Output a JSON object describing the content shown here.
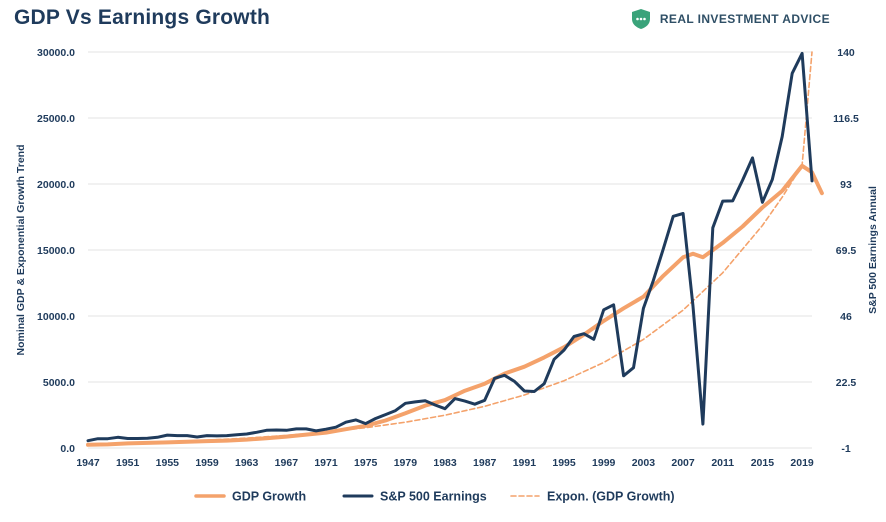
{
  "header": {
    "title": "GDP Vs Earnings Growth",
    "brand_name": "REAL INVESTMENT ADVICE",
    "brand_icon": "shield-logo-icon",
    "brand_color": "#3aa37a"
  },
  "chart_data": {
    "type": "line",
    "title": "GDP Vs Earnings Growth",
    "xlabel": "",
    "ylabel_left": "Nominal GDP & Exponential Growth Trend",
    "ylabel_right": "S&P 500 Earnings Annual",
    "xlim": [
      1947,
      2020
    ],
    "ylim_left": [
      0,
      30000
    ],
    "ylim_right": [
      -1,
      140
    ],
    "x_ticks": [
      "1947",
      "1951",
      "1955",
      "1959",
      "1963",
      "1967",
      "1971",
      "1975",
      "1979",
      "1983",
      "1987",
      "1991",
      "1995",
      "1999",
      "2003",
      "2007",
      "2011",
      "2015",
      "2019"
    ],
    "y_left_ticks": [
      "0.0",
      "5000.0",
      "10000.0",
      "15000.0",
      "20000.0",
      "25000.0",
      "30000.0"
    ],
    "y_right_ticks": [
      "-1",
      "22.5",
      "46",
      "69.5",
      "93",
      "116.5",
      "140"
    ],
    "grid": true,
    "legend_position": "bottom",
    "colors": {
      "gdp": "#f4a26b",
      "earnings": "#1f3b5c",
      "expon": "#f4a26b",
      "grid": "#e3e3e3"
    },
    "series": [
      {
        "name": "GDP Growth",
        "axis": "left",
        "style": "thick-solid",
        "x": [
          1947,
          1949,
          1951,
          1953,
          1955,
          1957,
          1959,
          1961,
          1963,
          1965,
          1967,
          1969,
          1971,
          1973,
          1975,
          1977,
          1979,
          1981,
          1983,
          1985,
          1987,
          1989,
          1991,
          1993,
          1995,
          1997,
          1999,
          2001,
          2003,
          2005,
          2007,
          2008,
          2009,
          2011,
          2013,
          2015,
          2017,
          2019,
          2020,
          2021
        ],
        "values": [
          244,
          273,
          348,
          389,
          426,
          475,
          522,
          563,
          638,
          743,
          862,
          1015,
          1165,
          1425,
          1685,
          2085,
          2630,
          3210,
          3630,
          4340,
          4870,
          5640,
          6160,
          6860,
          7640,
          8580,
          9630,
          10580,
          11460,
          13040,
          14450,
          14710,
          14450,
          15540,
          16780,
          18220,
          19480,
          21380,
          20890,
          19300
        ]
      },
      {
        "name": "S&P 500 Earnings",
        "axis": "right",
        "style": "solid",
        "x": [
          1947,
          1948,
          1949,
          1950,
          1951,
          1952,
          1953,
          1954,
          1955,
          1956,
          1957,
          1958,
          1959,
          1960,
          1961,
          1962,
          1963,
          1964,
          1965,
          1966,
          1967,
          1968,
          1969,
          1970,
          1971,
          1972,
          1973,
          1974,
          1975,
          1976,
          1977,
          1978,
          1979,
          1980,
          1981,
          1982,
          1983,
          1984,
          1985,
          1986,
          1987,
          1988,
          1989,
          1990,
          1991,
          1992,
          1993,
          1994,
          1995,
          1996,
          1997,
          1998,
          1999,
          2000,
          2001,
          2002,
          2003,
          2004,
          2005,
          2006,
          2007,
          2008,
          2009,
          2010,
          2011,
          2012,
          2013,
          2014,
          2015,
          2016,
          2017,
          2018,
          2019,
          2020
        ],
        "values": [
          1.6,
          2.3,
          2.3,
          2.8,
          2.4,
          2.4,
          2.5,
          2.8,
          3.6,
          3.4,
          3.4,
          2.9,
          3.4,
          3.3,
          3.4,
          3.7,
          4.0,
          4.6,
          5.3,
          5.4,
          5.3,
          5.8,
          5.8,
          5.1,
          5.7,
          6.4,
          8.2,
          9.0,
          7.7,
          9.5,
          10.9,
          12.3,
          14.9,
          15.4,
          15.8,
          14.3,
          13.0,
          16.6,
          15.7,
          14.6,
          16.0,
          23.8,
          24.9,
          22.7,
          19.3,
          19.1,
          21.9,
          30.6,
          33.9,
          38.7,
          39.7,
          37.7,
          48.2,
          50.0,
          24.7,
          27.6,
          48.7,
          58.6,
          69.8,
          81.5,
          82.5,
          49.5,
          7.5,
          77.4,
          86.9,
          87.0,
          94.4,
          102.3,
          86.5,
          94.6,
          109.9,
          132.4,
          139.5,
          94.1
        ]
      },
      {
        "name": "Expon. (GDP Growth)",
        "axis": "left",
        "style": "dashed",
        "x": [
          1947,
          1951,
          1955,
          1959,
          1963,
          1967,
          1971,
          1975,
          1979,
          1983,
          1987,
          1991,
          1995,
          1999,
          2003,
          2007,
          2011,
          2015,
          2017,
          2019,
          2020
        ],
        "values": [
          289,
          367,
          466,
          592,
          752,
          955,
          1213,
          1541,
          1957,
          2486,
          3158,
          4012,
          5096,
          6474,
          8224,
          10447,
          13271,
          16858,
          19000,
          21415,
          30000
        ]
      }
    ]
  }
}
